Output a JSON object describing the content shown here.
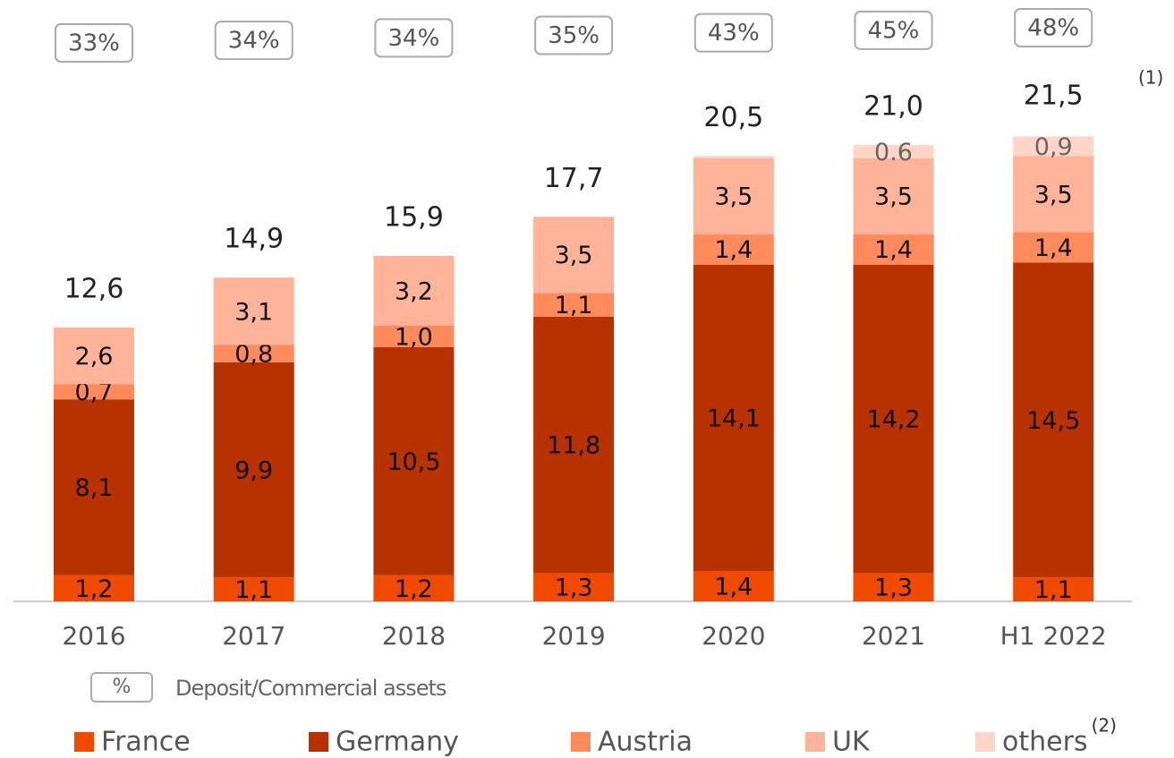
{
  "chart_data": {
    "type": "stacked_bar",
    "categories": [
      "2016",
      "2017",
      "2018",
      "2019",
      "2020",
      "2021",
      "H1 2022"
    ],
    "series": [
      {
        "name": "France",
        "color": "#f04a00",
        "values": [
          1.2,
          1.1,
          1.2,
          1.3,
          1.4,
          1.3,
          1.1
        ],
        "value_labels": [
          "1,2",
          "1,1",
          "1,2",
          "1,3",
          "1,4",
          "1,3",
          "1,1"
        ]
      },
      {
        "name": "Germany",
        "color": "#b83200",
        "values": [
          8.1,
          9.9,
          10.5,
          11.8,
          14.1,
          14.2,
          14.5
        ],
        "value_labels": [
          "8,1",
          "9,9",
          "10,5",
          "11,8",
          "14,1",
          "14,2",
          "14,5"
        ]
      },
      {
        "name": "Austria",
        "color": "#ff8a5c",
        "values": [
          0.7,
          0.8,
          1.0,
          1.1,
          1.4,
          1.4,
          1.4
        ],
        "value_labels": [
          "0,7",
          "0,8",
          "1,0",
          "1,1",
          "1,4",
          "1,4",
          "1,4"
        ]
      },
      {
        "name": "UK",
        "color": "#ffb399",
        "values": [
          2.6,
          3.1,
          3.2,
          3.5,
          3.5,
          3.5,
          3.5
        ],
        "value_labels": [
          "2,6",
          "3,1",
          "3,2",
          "3,5",
          "3,5",
          "3,5",
          "3,5"
        ]
      },
      {
        "name": "others",
        "color": "#ffd5c8",
        "values": [
          null,
          null,
          null,
          null,
          0.1,
          0.6,
          0.9
        ],
        "value_labels": [
          null,
          null,
          null,
          null,
          null,
          "0.6",
          "0,9"
        ]
      }
    ],
    "totals": {
      "values": [
        12.6,
        14.9,
        15.9,
        17.7,
        20.5,
        21.0,
        21.5
      ],
      "value_labels": [
        "12,6",
        "14,9",
        "15,9",
        "17,7",
        "20,5",
        "21,0",
        "21,5"
      ]
    },
    "ratios": {
      "values": [
        33,
        34,
        34,
        35,
        43,
        45,
        48
      ],
      "value_labels": [
        "33%",
        "34%",
        "34%",
        "35%",
        "43%",
        "45%",
        "48%"
      ]
    },
    "totals_note": "(1)",
    "others_note": "(2)",
    "ratio_legend": {
      "symbol": "%",
      "label": "Deposit/Commercial assets"
    }
  }
}
